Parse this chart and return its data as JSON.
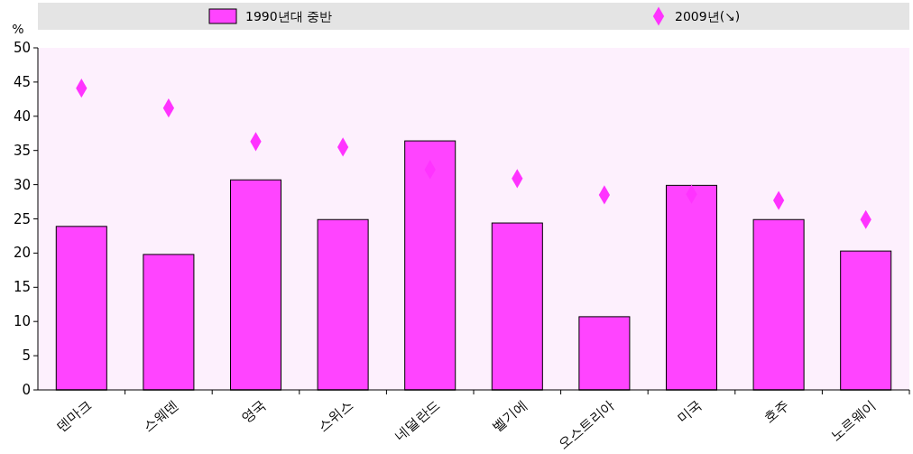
{
  "chart_data": {
    "type": "bar",
    "ylabel": "%",
    "categories": [
      "덴마크",
      "스웨덴",
      "영국",
      "스위스",
      "네덜란드",
      "벨기에",
      "오스트리아",
      "미국",
      "호주",
      "노르웨이"
    ],
    "series": [
      {
        "name": "1990년대 중반",
        "color": "#ff44ff",
        "values": [
          23.9,
          19.8,
          30.7,
          24.9,
          36.4,
          24.4,
          10.7,
          29.9,
          24.9,
          20.3
        ]
      },
      {
        "name": "2009년(↘)",
        "type": "scatter",
        "color": "#ff33ff",
        "marker": "diamond",
        "values": [
          44.1,
          41.2,
          36.3,
          35.5,
          32.2,
          30.9,
          28.5,
          28.6,
          27.7,
          24.9
        ]
      }
    ],
    "ylim": [
      0,
      50
    ],
    "yticks": [
      0,
      5,
      10,
      15,
      20,
      25,
      30,
      35,
      40,
      45,
      50
    ],
    "grid": false,
    "legend": "top"
  }
}
